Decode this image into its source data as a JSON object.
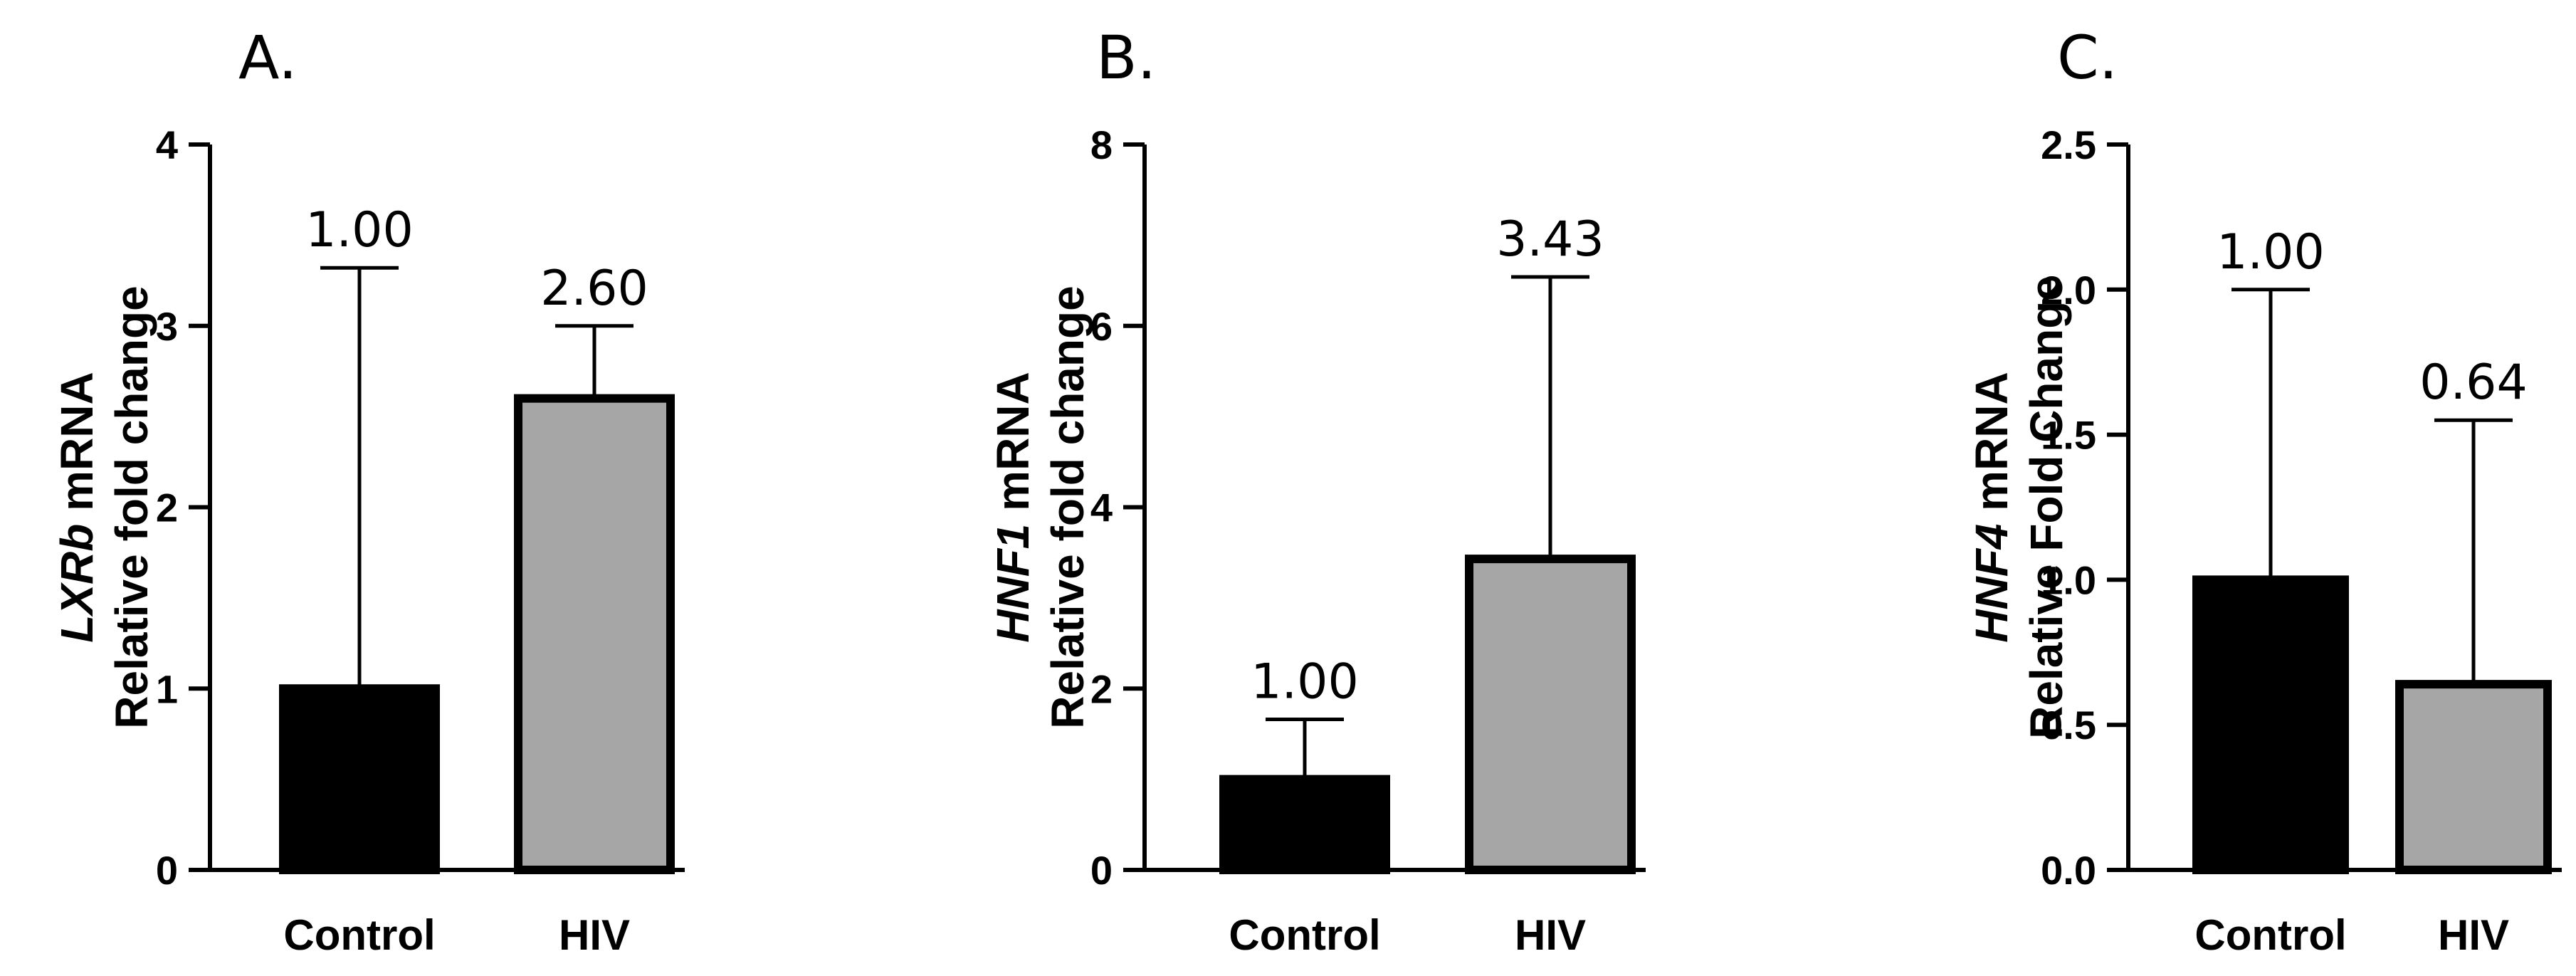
{
  "chart_data": [
    {
      "type": "bar",
      "panel_label": "A.",
      "ylabel_gene": "LXRb",
      "ylabel_suffix": " mRNA",
      "ylabel_line2": "Relative fold change",
      "ylim": [
        0,
        4
      ],
      "yticks": [
        "0",
        "1",
        "2",
        "3",
        "4"
      ],
      "categories": [
        "Control",
        "HIV"
      ],
      "values": [
        1.0,
        2.6
      ],
      "error_upper": [
        3.32,
        3.0
      ],
      "value_labels": [
        "1.00",
        "2.60"
      ],
      "bar_colors": [
        "#000000",
        "#a6a6a6"
      ]
    },
    {
      "type": "bar",
      "panel_label": "B.",
      "ylabel_gene": "HNF1",
      "ylabel_suffix": " mRNA",
      "ylabel_line2": "Relative fold change",
      "ylim": [
        0,
        8
      ],
      "yticks": [
        "0",
        "2",
        "4",
        "6",
        "8"
      ],
      "categories": [
        "Control",
        "HIV"
      ],
      "values": [
        1.0,
        3.43
      ],
      "error_upper": [
        1.66,
        6.54
      ],
      "value_labels": [
        "1.00",
        "3.43"
      ],
      "bar_colors": [
        "#000000",
        "#a6a6a6"
      ]
    },
    {
      "type": "bar",
      "panel_label": "C.",
      "ylabel_gene": "HNF4",
      "ylabel_suffix": " mRNA",
      "ylabel_line2": "Relative Fold Change",
      "ylim": [
        0,
        2.5
      ],
      "yticks": [
        "0.0",
        "0.5",
        "1.0",
        "1.5",
        "2.0",
        "2.5"
      ],
      "categories": [
        "Control",
        "HIV"
      ],
      "values": [
        1.0,
        0.64
      ],
      "error_upper": [
        2.0,
        1.55
      ],
      "value_labels": [
        "1.00",
        "0.64"
      ],
      "bar_colors": [
        "#000000",
        "#a6a6a6"
      ]
    }
  ]
}
